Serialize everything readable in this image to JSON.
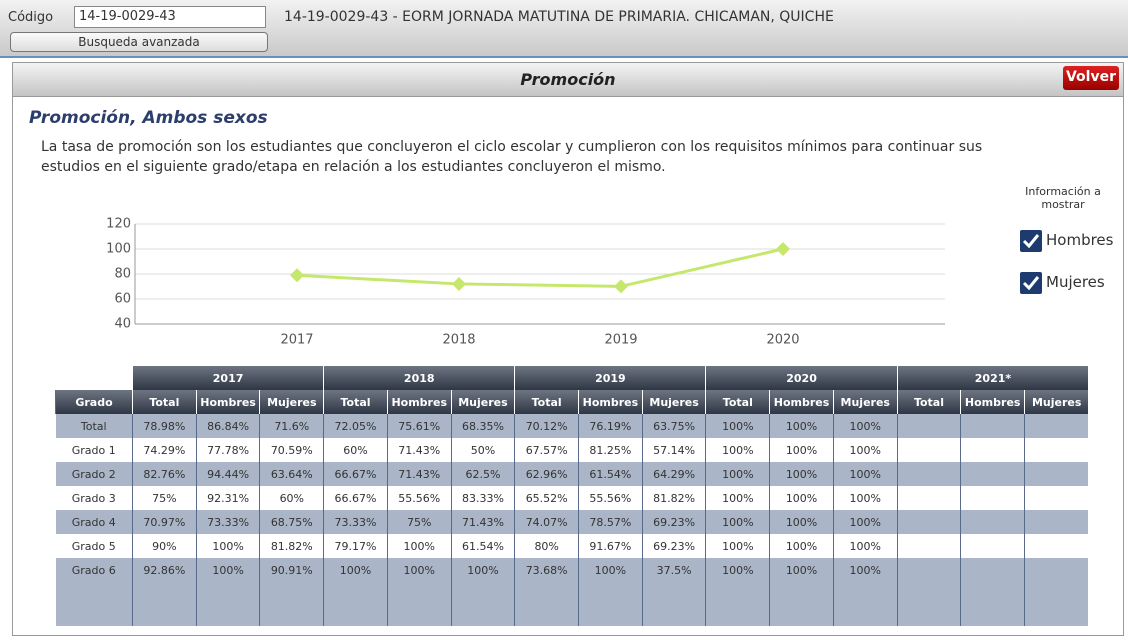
{
  "header": {
    "code_label": "Código",
    "code_value": "14-19-0029-43",
    "advanced_search": "Busqueda avanzada",
    "school": "14-19-0029-43 - EORM JORNADA MATUTINA DE PRIMARIA. CHICAMAN, QUICHE"
  },
  "panel": {
    "title": "Promoción",
    "back": "Volver",
    "section_title": "Promoción, Ambos sexos",
    "description": "La tasa de promoción son los estudiantes que concluyeron el ciclo escolar y cumplieron con los requisitos mínimos para continuar sus estudios en el siguiente grado/etapa en relación a los estudiantes concluyeron el mismo."
  },
  "options": {
    "title": "Información a mostrar",
    "items": [
      "Hombres",
      "Mujeres"
    ]
  },
  "chart_data": {
    "type": "line",
    "categories": [
      "2017",
      "2018",
      "2019",
      "2020"
    ],
    "values": [
      78.98,
      72.05,
      70.12,
      100
    ],
    "color": "#c5e86c",
    "ylim": [
      40,
      120
    ],
    "yticks": [
      40,
      60,
      80,
      100,
      120
    ],
    "grid": true
  },
  "table": {
    "years": [
      "2017",
      "2018",
      "2019",
      "2020",
      "2021*"
    ],
    "row_header": "Grado",
    "columns": [
      "Total",
      "Hombres",
      "Mujeres"
    ],
    "rows": [
      [
        "Total",
        "78.98%",
        "86.84%",
        "71.6%",
        "72.05%",
        "75.61%",
        "68.35%",
        "70.12%",
        "76.19%",
        "63.75%",
        "100%",
        "100%",
        "100%"
      ],
      [
        "Grado 1",
        "74.29%",
        "77.78%",
        "70.59%",
        "60%",
        "71.43%",
        "50%",
        "67.57%",
        "81.25%",
        "57.14%",
        "100%",
        "100%",
        "100%"
      ],
      [
        "Grado 2",
        "82.76%",
        "94.44%",
        "63.64%",
        "66.67%",
        "71.43%",
        "62.5%",
        "62.96%",
        "61.54%",
        "64.29%",
        "100%",
        "100%",
        "100%"
      ],
      [
        "Grado 3",
        "75%",
        "92.31%",
        "60%",
        "66.67%",
        "55.56%",
        "83.33%",
        "65.52%",
        "55.56%",
        "81.82%",
        "100%",
        "100%",
        "100%"
      ],
      [
        "Grado 4",
        "70.97%",
        "73.33%",
        "68.75%",
        "73.33%",
        "75%",
        "71.43%",
        "74.07%",
        "78.57%",
        "69.23%",
        "100%",
        "100%",
        "100%"
      ],
      [
        "Grado 5",
        "90%",
        "100%",
        "81.82%",
        "79.17%",
        "100%",
        "61.54%",
        "80%",
        "91.67%",
        "69.23%",
        "100%",
        "100%",
        "100%"
      ],
      [
        "Grado 6",
        "92.86%",
        "100%",
        "90.91%",
        "100%",
        "100%",
        "100%",
        "73.68%",
        "100%",
        "37.5%",
        "100%",
        "100%",
        "100%"
      ]
    ]
  }
}
